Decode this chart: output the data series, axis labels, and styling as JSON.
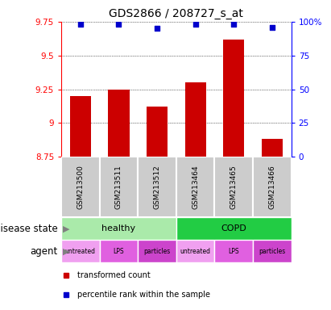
{
  "title": "GDS2866 / 208727_s_at",
  "samples": [
    "GSM213500",
    "GSM213511",
    "GSM213512",
    "GSM213464",
    "GSM213465",
    "GSM213466"
  ],
  "bar_values": [
    9.2,
    9.25,
    9.12,
    9.3,
    9.62,
    8.88
  ],
  "bar_bottom": 8.75,
  "dot_values": [
    9.73,
    9.73,
    9.7,
    9.73,
    9.73,
    9.71
  ],
  "ylim": [
    8.75,
    9.75
  ],
  "yticks": [
    8.75,
    9.0,
    9.25,
    9.5,
    9.75
  ],
  "ytick_labels": [
    "8.75",
    "9",
    "9.25",
    "9.5",
    "9.75"
  ],
  "y2ticks": [
    0,
    25,
    50,
    75,
    100
  ],
  "y2tick_labels": [
    "0",
    "25",
    "50",
    "75",
    "100%"
  ],
  "bar_color": "#cc0000",
  "dot_color": "#0000cc",
  "grid_color": "#000000",
  "disease_state_groups": [
    {
      "label": "healthy",
      "start": 0,
      "end": 3,
      "color": "#aaeaaa"
    },
    {
      "label": "COPD",
      "start": 3,
      "end": 6,
      "color": "#22cc44"
    }
  ],
  "agent_groups": [
    {
      "label": "untreated",
      "start": 0,
      "end": 1,
      "color": "#f0a0f0"
    },
    {
      "label": "LPS",
      "start": 1,
      "end": 2,
      "color": "#e060e0"
    },
    {
      "label": "particles",
      "start": 2,
      "end": 3,
      "color": "#cc44cc"
    },
    {
      "label": "untreated",
      "start": 3,
      "end": 4,
      "color": "#f0a0f0"
    },
    {
      "label": "LPS",
      "start": 4,
      "end": 5,
      "color": "#e060e0"
    },
    {
      "label": "particles",
      "start": 5,
      "end": 6,
      "color": "#cc44cc"
    }
  ],
  "legend_items": [
    {
      "label": "transformed count",
      "color": "#cc0000"
    },
    {
      "label": "percentile rank within the sample",
      "color": "#0000cc"
    }
  ],
  "disease_state_label": "disease state",
  "agent_label": "agent",
  "sample_box_color": "#cccccc",
  "title_fontsize": 10,
  "tick_fontsize": 7.5,
  "label_fontsize": 8.5
}
